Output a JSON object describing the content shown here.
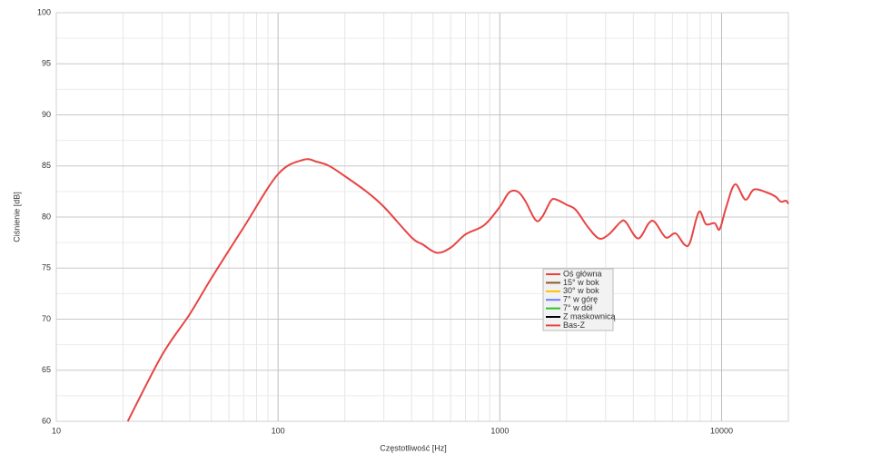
{
  "chart_data": {
    "type": "line",
    "y_label": "Ciśnienie [dB]",
    "x_label": "Częstotliwość [Hz]",
    "log_x": true,
    "grid": true,
    "legend_position": "center-right",
    "xlim": [
      10,
      20000
    ],
    "ylim": [
      60,
      100
    ],
    "xticks": [
      10,
      100,
      1000,
      10000
    ],
    "yticks": [
      60,
      65,
      70,
      75,
      80,
      85,
      90,
      95,
      100
    ],
    "x": [
      21,
      30,
      40,
      50,
      70,
      100,
      130,
      150,
      170,
      200,
      250,
      300,
      400,
      450,
      520,
      600,
      700,
      850,
      1000,
      1100,
      1200,
      1300,
      1450,
      1550,
      1700,
      1800,
      2000,
      2200,
      2500,
      2800,
      3100,
      3500,
      3700,
      4200,
      4700,
      5000,
      5600,
      6200,
      6800,
      7200,
      7900,
      8500,
      9300,
      9800,
      10500,
      11500,
      12800,
      14000,
      16000,
      17500,
      18500,
      19500,
      20000
    ],
    "series": [
      {
        "name": "Oś główna",
        "color": "#e8413c"
      },
      {
        "name": "15° w bok",
        "color": "#8b5a2b"
      },
      {
        "name": "30° w bok",
        "color": "#ffc000"
      },
      {
        "name": "7° w górę",
        "color": "#6b7cff"
      },
      {
        "name": "7° w dół",
        "color": "#22c822"
      },
      {
        "name": "Z maskownicą",
        "color": "#000000"
      },
      {
        "name": "Bas-Z",
        "color": "#e84444",
        "values": [
          60,
          66.5,
          70.5,
          74,
          79,
          84.2,
          85.6,
          85.4,
          85,
          84,
          82.5,
          81,
          78,
          77.3,
          76.5,
          77,
          78.3,
          79.2,
          81,
          82.4,
          82.5,
          81.6,
          79.7,
          80,
          81.6,
          81.7,
          81.2,
          80.7,
          79,
          77.9,
          78.3,
          79.5,
          79.5,
          77.9,
          79.4,
          79.5,
          78,
          78.4,
          77.3,
          77.5,
          80.5,
          79.3,
          79.4,
          78.8,
          81,
          83.2,
          81.7,
          82.7,
          82.4,
          82,
          81.5,
          81.6,
          81.3
        ]
      }
    ]
  }
}
